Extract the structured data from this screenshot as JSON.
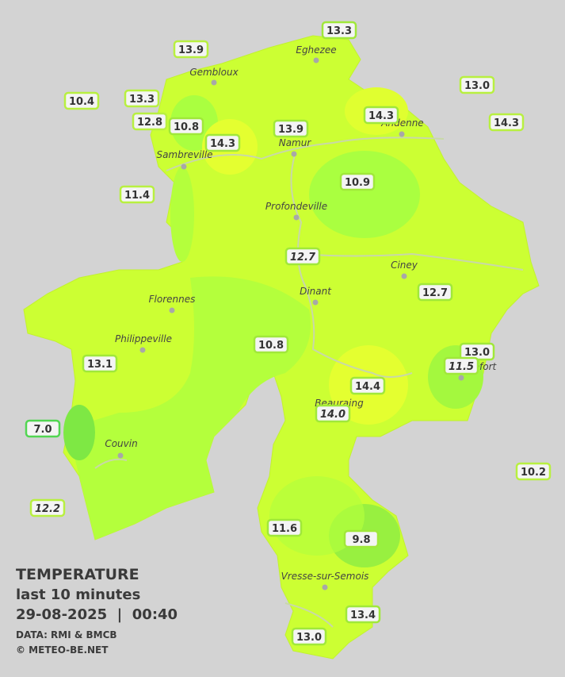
{
  "cities": [
    "Eghezee",
    "Gembloux",
    "Andenne",
    "Namur",
    "Sambreville",
    "Profondeville",
    "Ciney",
    "Dinant",
    "Florennes",
    "Philippeville",
    "Rochefort",
    "Beauraing",
    "Couvin",
    "Vresse-sur-Semois"
  ],
  "stations": [
    "13.3",
    "13.9",
    "10.4",
    "13.3",
    "13.0",
    "12.8",
    "10.8",
    "14.3",
    "14.3",
    "13.9",
    "14.3",
    "10.9",
    "11.4",
    "12.7",
    "12.7",
    "10.8",
    "13.0",
    "13.1",
    "11.5",
    "14.4",
    "14.0",
    "7.0",
    "10.2",
    "12.2",
    "11.6",
    "9.8",
    "13.4",
    "13.0"
  ],
  "legend": {
    "title": "TEMPERATURE",
    "period": "last 10 minutes",
    "datetime": "29-08-2025  |  00:40",
    "source": "DATA: RMI & BMCB",
    "credit": "© METEO-BE.NET"
  }
}
